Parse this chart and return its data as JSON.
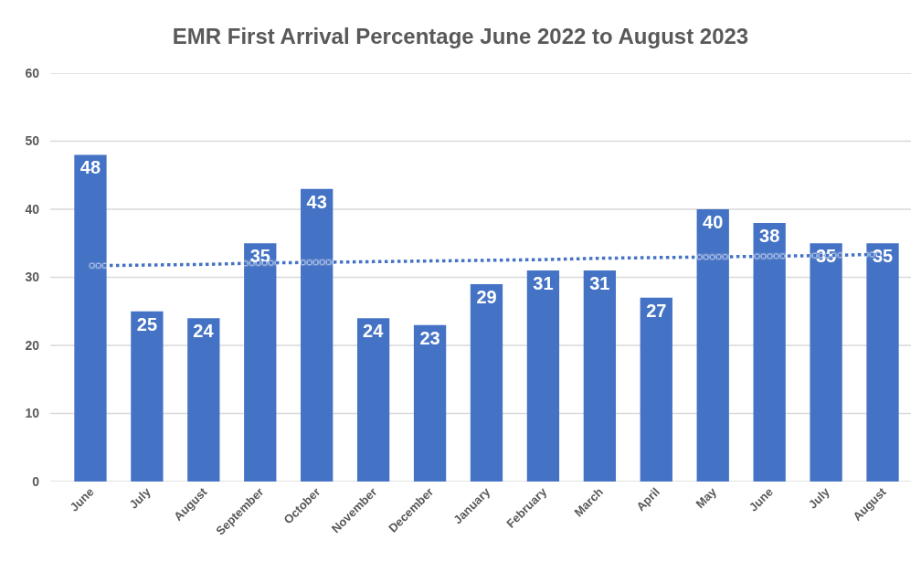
{
  "chart_data": {
    "type": "bar",
    "title": "EMR First Arrival Percentage June 2022 to August 2023",
    "categories": [
      "June",
      "July",
      "August",
      "September",
      "October",
      "November",
      "December",
      "January",
      "February",
      "March",
      "April",
      "May",
      "June",
      "July",
      "August"
    ],
    "series": [
      {
        "color": "#4472c4",
        "values": [
          48,
          25,
          24,
          35,
          43,
          24,
          23,
          29,
          31,
          31,
          27,
          40,
          38,
          35,
          35
        ],
        "value_labels": [
          "48",
          "25",
          "24",
          "35",
          "43",
          "24",
          "23",
          "29",
          "31",
          "31",
          "27",
          "40",
          "38",
          "35",
          "35"
        ]
      },
      {
        "type": "line",
        "color": "#4472c4",
        "line_style": "dotted",
        "values": [
          31.7,
          31.8,
          31.9,
          32.1,
          32.2,
          32.3,
          32.4,
          32.5,
          32.6,
          32.8,
          32.9,
          33.0,
          33.1,
          33.2,
          33.4
        ]
      }
    ],
    "ylim": [
      0,
      60
    ],
    "yticks": [
      0,
      10,
      20,
      30,
      40,
      50,
      60
    ],
    "grid": "y"
  }
}
